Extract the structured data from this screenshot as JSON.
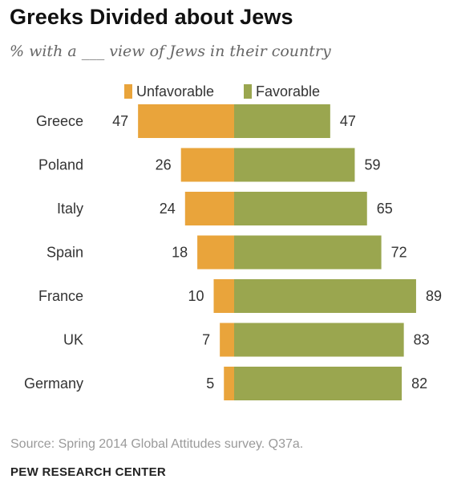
{
  "header": {
    "title": "Greeks Divided about Jews",
    "subtitle": "% with a ___ view of Jews in their country"
  },
  "footer": {
    "source": "Source: Spring 2014 Global Attitudes survey. Q37a.",
    "org": "PEW RESEARCH CENTER"
  },
  "colors": {
    "unfavorable": "#e9a43b",
    "favorable": "#9aa64f"
  },
  "chart_data": {
    "type": "bar",
    "orientation": "horizontal-diverging",
    "title": "Greeks Divided about Jews",
    "subtitle": "% with a ___ view of Jews in their country",
    "categories": [
      "Greece",
      "Poland",
      "Italy",
      "Spain",
      "France",
      "UK",
      "Germany"
    ],
    "series": [
      {
        "name": "Unfavorable",
        "values": [
          47,
          26,
          24,
          18,
          10,
          7,
          5
        ],
        "direction": "left"
      },
      {
        "name": "Favorable",
        "values": [
          47,
          59,
          65,
          72,
          89,
          83,
          82
        ],
        "direction": "right"
      }
    ],
    "legend": "top-center",
    "grid": false
  }
}
